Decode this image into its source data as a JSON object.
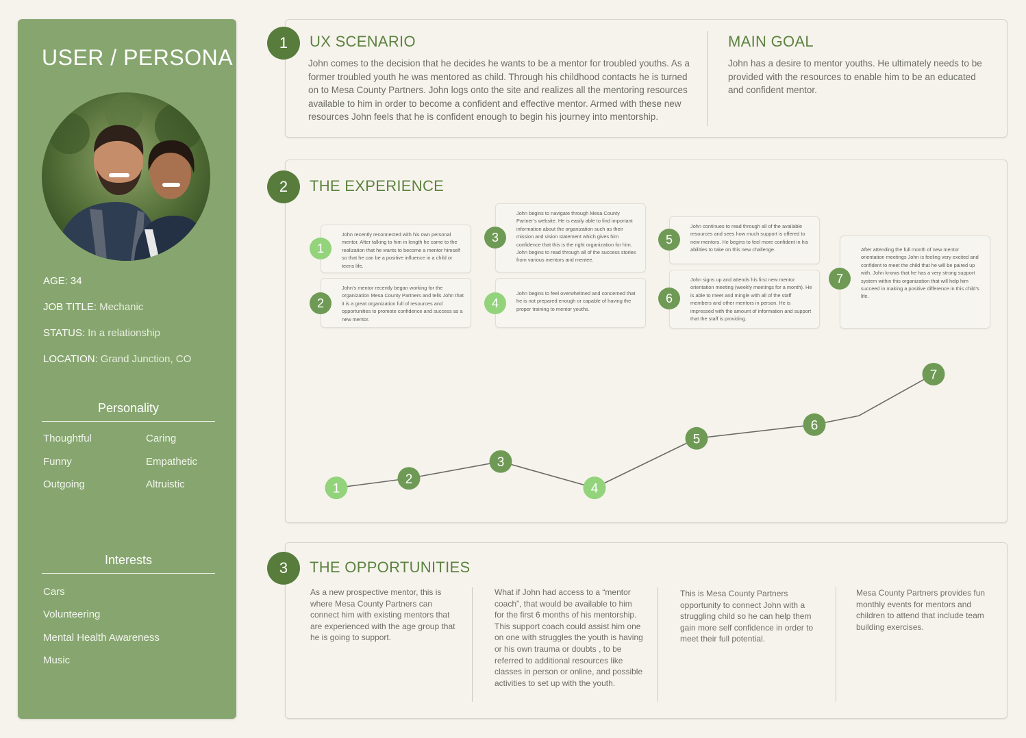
{
  "persona": {
    "title": "USER / PERSONA",
    "age_label": "AGE:",
    "age_value": "34",
    "job_label": "JOB TITLE:",
    "job_value": "Mechanic",
    "status_label": "STATUS:",
    "status_value": "In a relationship",
    "location_label": "LOCATION:",
    "location_value": "Grand Junction, CO",
    "personality_title": "Personality",
    "personality": [
      "Thoughtful",
      "Caring",
      "Funny",
      "Empathetic",
      "Outgoing",
      "Altruistic"
    ],
    "interests_title": "Interests",
    "interests": [
      "Cars",
      "Volunteering",
      "Mental Health Awareness",
      "Music"
    ]
  },
  "scenario": {
    "number": "1",
    "title": "UX SCENARIO",
    "text": "John comes to the decision that he decides he wants to be a mentor for troubled youths. As a former troubled youth he was mentored as child. Through his childhood contacts he is turned on to Mesa County Partners. John logs onto the site and realizes all the mentoring resources available to him in order to become a confident and effective mentor. Armed with these new resources John feels that he is confident enough to begin his journey into mentorship.",
    "goal_title": "MAIN GOAL",
    "goal_text": "John has a desire to mentor youths. He ultimately needs to be provided with the resources to enable him to be an educated and confident mentor."
  },
  "experience": {
    "number": "2",
    "title": "THE EXPERIENCE",
    "steps": [
      {
        "n": "1",
        "text": "John recently reconnected with his own personal mentor. After talking to him in length he came to the realization that he wants to become a mentor himself so that he can be a positive influence in a child or teens life."
      },
      {
        "n": "2",
        "text": "John’s mentor recently began working for the organization Mesa County Partners and tells John that it is a great organization full of  resources and opportunities to promote confidence and success as a new mentor."
      },
      {
        "n": "3",
        "text": "John begins to navigate through Mesa County Partner’s website. He is easily able to find important information about the organization such as their mission and vision statement which gives him confidence that this is the right organization for him. John begins to read through all of the success stories from various mentors and mentee."
      },
      {
        "n": "4",
        "text": "John begins to feel overwhelmed and concerned that he is not prepared enough or capable of having the proper training to mentor youths."
      },
      {
        "n": "5",
        "text": "John continues to read through all of the available resources and sees how much support is offered to new mentors. He begins to feel more confident in his abilities to take on this new challenge."
      },
      {
        "n": "6",
        "text": "John signs up and attends his first new mentor orientation meeting (weekly meetings for a month). He is able to meet and mingle with all of the staff members and other mentors in person. He is impressed with the amount of information and support that the staff is providing."
      },
      {
        "n": "7",
        "text": "After attending the full month of new mentor orientation meetings John is feeling very excited and confident to meet the child that he will be paired up with. John knows that he has a very strong support system within this organization that will help him succeed in making a positive difference in this child’s life."
      }
    ]
  },
  "opportunities": {
    "number": "3",
    "title": "THE OPPORTUNITIES",
    "items": [
      "As a new prospective mentor, this is where Mesa County Partners can connect him with existing mentors that are experienced with the age group that he is going to support.",
      "What if John had access to a “mentor coach”, that would be available to him for the first 6 months of his mentorship. This support coach could assist him one on one with struggles the youth is having or his own trauma or doubts , to be referred to additional resources like classes in person or online,  and possible activities to set up with the youth.",
      "This is Mesa County Partners opportunity to connect John with a struggling child so he can help them gain more self confidence in order to meet their full potential.",
      "Mesa County Partners provides fun monthly events for mentors and children to attend that include team building exercises."
    ]
  },
  "chart_data": {
    "type": "line",
    "categories": [
      "1",
      "2",
      "3",
      "4",
      "5",
      "6",
      "7"
    ],
    "values": [
      1.0,
      1.9,
      3.5,
      1.0,
      5.7,
      7.0,
      11.8
    ],
    "ylim": [
      0,
      13
    ],
    "colors": {
      "line": "#6b6b66",
      "light": "#93d37b",
      "dark": "#6f9a55"
    },
    "point_style": [
      "light",
      "dark",
      "dark",
      "light",
      "dark",
      "dark",
      "dark"
    ]
  },
  "colors": {
    "sidebar": "#87a66f",
    "accent": "#587c3c",
    "title": "#5c8240",
    "background": "#f6f3ec"
  }
}
